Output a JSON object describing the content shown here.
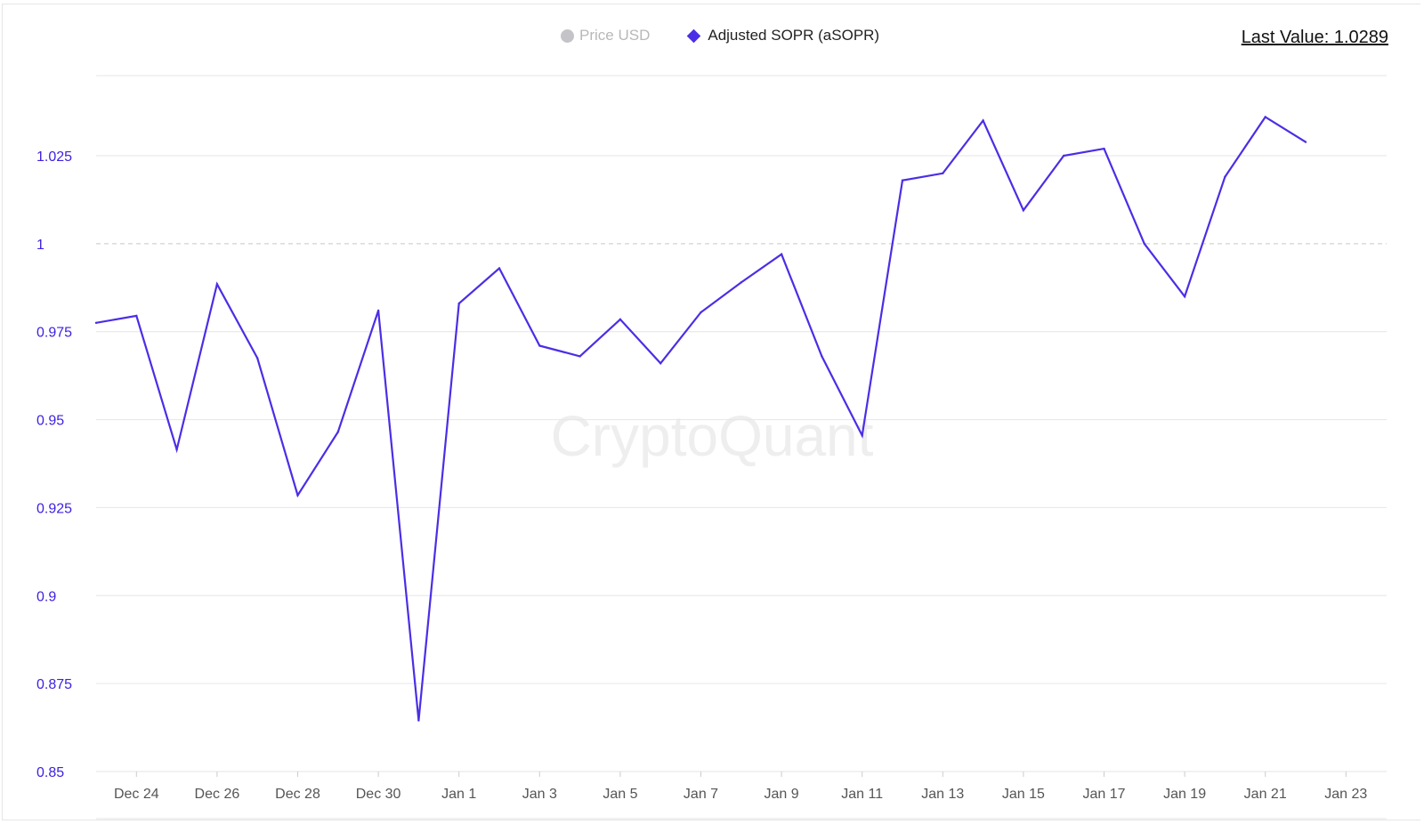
{
  "legend": {
    "price_label": "Price USD",
    "asopr_label": "Adjusted SOPR (aSOPR)"
  },
  "last_value_text": "Last Value: 1.0289",
  "watermark": "CryptoQuant",
  "colors": {
    "line": "#4a2ee6",
    "axis_text": "#3d22e0",
    "grid": "#e6e6e6",
    "reference_line": "#c8c8c8",
    "price_legend": "#c4c4c8"
  },
  "chart_data": {
    "type": "line",
    "title": "",
    "xlabel": "",
    "ylabel": "",
    "ylim": [
      0.85,
      1.04
    ],
    "yticks": [
      {
        "value": 0.85,
        "label": "0.85"
      },
      {
        "value": 0.875,
        "label": "0.875"
      },
      {
        "value": 0.9,
        "label": "0.9"
      },
      {
        "value": 0.925,
        "label": "0.925"
      },
      {
        "value": 0.95,
        "label": "0.95"
      },
      {
        "value": 0.975,
        "label": "0.975"
      },
      {
        "value": 1.0,
        "label": "1"
      },
      {
        "value": 1.025,
        "label": "1.025"
      }
    ],
    "reference_line": 1.0,
    "xticks": [
      "Dec 24",
      "Dec 26",
      "Dec 28",
      "Dec 30",
      "Jan 1",
      "Jan 3",
      "Jan 5",
      "Jan 7",
      "Jan 9",
      "Jan 11",
      "Jan 13",
      "Jan 15",
      "Jan 17",
      "Jan 19",
      "Jan 21",
      "Jan 23"
    ],
    "series": [
      {
        "name": "Adjusted SOPR (aSOPR)",
        "x": [
          "Dec 23",
          "Dec 24",
          "Dec 25",
          "Dec 26",
          "Dec 27",
          "Dec 28",
          "Dec 29",
          "Dec 30",
          "Dec 31",
          "Jan 1",
          "Jan 2",
          "Jan 3",
          "Jan 4",
          "Jan 5",
          "Jan 6",
          "Jan 7",
          "Jan 8",
          "Jan 9",
          "Jan 10",
          "Jan 11",
          "Jan 12",
          "Jan 13",
          "Jan 14",
          "Jan 15",
          "Jan 16",
          "Jan 17",
          "Jan 18",
          "Jan 19",
          "Jan 20",
          "Jan 21",
          "Jan 22"
        ],
        "values": [
          0.9775,
          0.9795,
          0.9415,
          0.9885,
          0.9675,
          0.9285,
          0.9465,
          0.981,
          0.8645,
          0.983,
          0.993,
          0.971,
          0.968,
          0.9785,
          0.966,
          0.9805,
          0.989,
          0.997,
          0.968,
          0.9455,
          1.018,
          1.02,
          1.035,
          1.0095,
          1.025,
          1.027,
          1.0,
          0.985,
          1.019,
          1.036,
          1.0289
        ]
      }
    ]
  }
}
